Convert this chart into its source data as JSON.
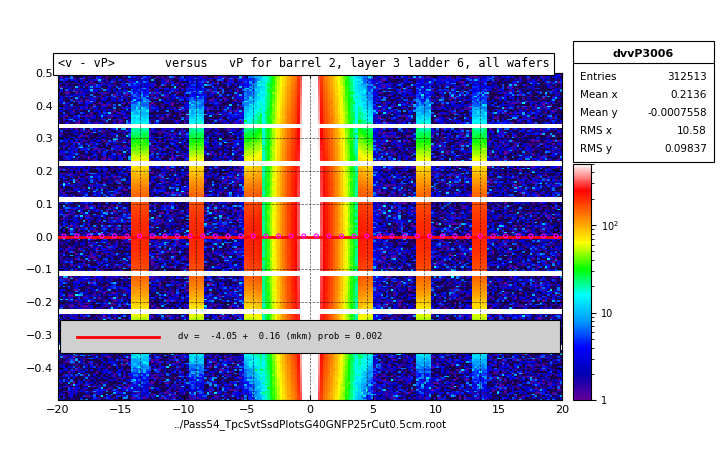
{
  "title": "<v - vP>       versus   vP for barrel 2, layer 3 ladder 6, all wafers",
  "xlabel": "../Pass54_TpcSvtSsdPlotsG40GNFP25rCut0.5cm.root",
  "ylabel": "",
  "hist_name": "dvvP3006",
  "entries": "312513",
  "mean_x": "0.2136",
  "mean_y": "-0.0007558",
  "rms_x": "10.58",
  "rms_y": "0.09837",
  "xmin": -20,
  "xmax": 20,
  "ymin": -0.5,
  "ymax": 0.5,
  "fit_text": "dv =  -4.05 +  0.16 (mkm) prob = 0.002",
  "background_color": "#ffffff"
}
